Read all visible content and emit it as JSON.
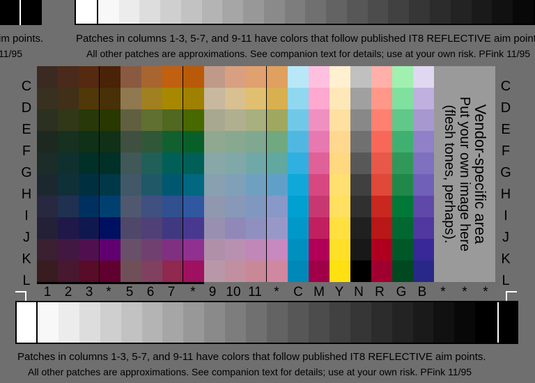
{
  "captions": {
    "line1": "Patches in columns 1-3, 5-7, and 9-11 have colors that follow published IT8 REFLECTIVE aim points.",
    "line2": "All other patches are approximations. See companion text for details; use at your own risk. PFink 11/95",
    "top_left_fragment1": "im points.",
    "top_left_fragment2": "11/95"
  },
  "vendor_area": {
    "title": "Vendor-specific area",
    "line2": "Put your own image here",
    "line3": "(flesh tones, perhaps)."
  },
  "row_labels": [
    "C",
    "D",
    "E",
    "F",
    "G",
    "H",
    "I",
    "J",
    "K",
    "L"
  ],
  "column_labels": [
    "1",
    "2",
    "3",
    "*",
    "5",
    "6",
    "7",
    "*",
    "9",
    "10",
    "11",
    "*",
    "C",
    "M",
    "Y",
    "N",
    "R",
    "G",
    "B",
    "*",
    "*",
    "*"
  ],
  "colors": {
    "background": "#6f6f6f",
    "vendor_area": "#9a9a9a"
  },
  "grid_colors": [
    [
      "#3b2a22",
      "#4a2a1a",
      "#552a10",
      "#4a2208",
      "#8a5a40",
      "#a86530",
      "#c06010",
      "#b85a08",
      "#c09a88",
      "#d8a080",
      "#e0a070",
      "#e0a060",
      "#b8e8f8",
      "#ffc0e0",
      "#fff0d0",
      "#c0c0c0",
      "#ffb0a8",
      "#a0f0b0",
      "#e0d8f0"
    ],
    [
      "#383020",
      "#403018",
      "#503808",
      "#483008",
      "#907850",
      "#a08020",
      "#a88800",
      "#a08000",
      "#c8b8a0",
      "#d8c090",
      "#e0c070",
      "#d8b050",
      "#90d8f0",
      "#ffa8d0",
      "#ffe8b8",
      "#a0a0a0",
      "#ff9888",
      "#80e0a0",
      "#c0b0e0"
    ],
    [
      "#2c3020",
      "#303818",
      "#283808",
      "#283800",
      "#606040",
      "#607030",
      "#506820",
      "#486800",
      "#a8a890",
      "#b0b090",
      "#a8b080",
      "#a0a860",
      "#70c8e8",
      "#f090c0",
      "#ffe0a0",
      "#888888",
      "#ff8070",
      "#60c888",
      "#a898d0"
    ],
    [
      "#1c2820",
      "#183020",
      "#103018",
      "#103018",
      "#405040",
      "#305838",
      "#106030",
      "#086028",
      "#90a890",
      "#88a890",
      "#80a890",
      "#70a880",
      "#50b8e0",
      "#e878b0",
      "#ffd890",
      "#707070",
      "#f86858",
      "#40b070",
      "#9080c8"
    ],
    [
      "#1c2c28",
      "#103030",
      "#003028",
      "#003028",
      "#405858",
      "#206058",
      "#006058",
      "#006058",
      "#88a8a8",
      "#80a8a8",
      "#70a8a8",
      "#60a8a0",
      "#30b0e0",
      "#e06098",
      "#ffd880",
      "#585858",
      "#e85848",
      "#309858",
      "#8070c0"
    ],
    [
      "#1c2830",
      "#103038",
      "#003040",
      "#003848",
      "#405868",
      "#205868",
      "#005870",
      "#006880",
      "#88a0b0",
      "#80a0b8",
      "#70a0c0",
      "#60a0c8",
      "#10a8d8",
      "#d84880",
      "#ffe070",
      "#404040",
      "#e04838",
      "#208848",
      "#7060b8"
    ],
    [
      "#282840",
      "#203050",
      "#003060",
      "#004070",
      "#505870",
      "#405080",
      "#305090",
      "#3058a0",
      "#9098b0",
      "#8898b8",
      "#8098c0",
      "#8898c8",
      "#00a0d0",
      "#c83870",
      "#ffe060",
      "#303030",
      "#c82820",
      "#007838",
      "#6048a8"
    ],
    [
      "#242038",
      "#201848",
      "#101850",
      "#001060",
      "#504868",
      "#504078",
      "#403880",
      "#483890",
      "#9890b0",
      "#9088b8",
      "#9090c0",
      "#9898c8",
      "#0098c8",
      "#c02060",
      "#ffe040",
      "#202020",
      "#b81818",
      "#006830",
      "#5038a0"
    ],
    [
      "#3a2030",
      "#401840",
      "#501050",
      "#600070",
      "#685068",
      "#704070",
      "#803080",
      "#903090",
      "#b090a8",
      "#b890b0",
      "#c088b8",
      "#c888c0",
      "#0090c0",
      "#b00058",
      "#ffe028",
      "#181818",
      "#b00020",
      "#005828",
      "#382898"
    ],
    [
      "#381c20",
      "#481830",
      "#580c28",
      "#600030",
      "#705058",
      "#804060",
      "#902850",
      "#a01060",
      "#b898a8",
      "#c090a0",
      "#c88898",
      "#d088a0",
      "#0088b8",
      "#a00048",
      "#ffe010",
      "#000000",
      "#a00030",
      "#004820",
      "#282888"
    ]
  ],
  "ramp_colors": [
    "#ffffff",
    "#f8f8f8",
    "#ececec",
    "#dddddd",
    "#cfcfcf",
    "#c2c2c2",
    "#b4b4b4",
    "#a6a6a6",
    "#989898",
    "#8a8a8a",
    "#7d7d7d",
    "#707070",
    "#636363",
    "#575757",
    "#4c4c4c",
    "#414141",
    "#363636",
    "#2c2c2c",
    "#232323",
    "#1a1a1a",
    "#111111",
    "#080808",
    "#000000",
    "#000000"
  ]
}
